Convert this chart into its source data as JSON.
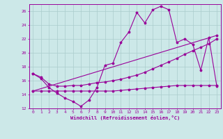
{
  "background_color": "#cce8e8",
  "grid_color": "#aacccc",
  "line_color": "#990099",
  "xlabel": "Windchill (Refroidissement éolien,°C)",
  "xlabel_color": "#990099",
  "tick_color": "#990099",
  "xlim": [
    -0.5,
    23.5
  ],
  "ylim": [
    12,
    27
  ],
  "yticks": [
    12,
    14,
    16,
    18,
    20,
    22,
    24,
    26
  ],
  "xticks": [
    0,
    1,
    2,
    3,
    4,
    5,
    6,
    7,
    8,
    9,
    10,
    11,
    12,
    13,
    14,
    15,
    16,
    17,
    18,
    19,
    20,
    21,
    22,
    23
  ],
  "curve1_x": [
    0,
    1,
    2,
    3,
    4,
    5,
    6,
    7,
    8,
    9,
    10,
    11,
    12,
    13,
    14,
    15,
    16,
    17,
    18,
    19,
    20,
    21,
    22,
    23
  ],
  "curve1_y": [
    17.0,
    16.3,
    15.0,
    14.2,
    13.5,
    13.0,
    12.3,
    13.2,
    15.0,
    18.2,
    18.5,
    21.5,
    23.0,
    25.8,
    24.3,
    26.2,
    26.7,
    26.2,
    21.5,
    22.0,
    21.2,
    17.5,
    22.2,
    15.2
  ],
  "curve2_x": [
    0,
    1,
    2,
    3,
    4,
    5,
    6,
    7,
    8,
    9,
    10,
    11,
    12,
    13,
    14,
    15,
    16,
    17,
    18,
    19,
    20,
    21,
    22,
    23
  ],
  "curve2_y": [
    17.0,
    16.5,
    15.5,
    15.2,
    15.2,
    15.3,
    15.3,
    15.5,
    15.7,
    15.8,
    16.0,
    16.2,
    16.5,
    16.8,
    17.2,
    17.7,
    18.2,
    18.7,
    19.2,
    19.8,
    20.3,
    20.8,
    21.3,
    22.0
  ],
  "curve3_x": [
    0,
    1,
    2,
    3,
    4,
    5,
    6,
    7,
    8,
    9,
    10,
    11,
    12,
    13,
    14,
    15,
    16,
    17,
    18,
    19,
    20,
    21,
    22,
    23
  ],
  "curve3_y": [
    14.5,
    14.5,
    14.5,
    14.5,
    14.5,
    14.5,
    14.5,
    14.5,
    14.5,
    14.5,
    14.5,
    14.6,
    14.7,
    14.8,
    14.9,
    15.0,
    15.1,
    15.2,
    15.3,
    15.3,
    15.3,
    15.3,
    15.3,
    15.3
  ],
  "curve4_x": [
    0,
    23
  ],
  "curve4_y": [
    14.5,
    22.5
  ]
}
